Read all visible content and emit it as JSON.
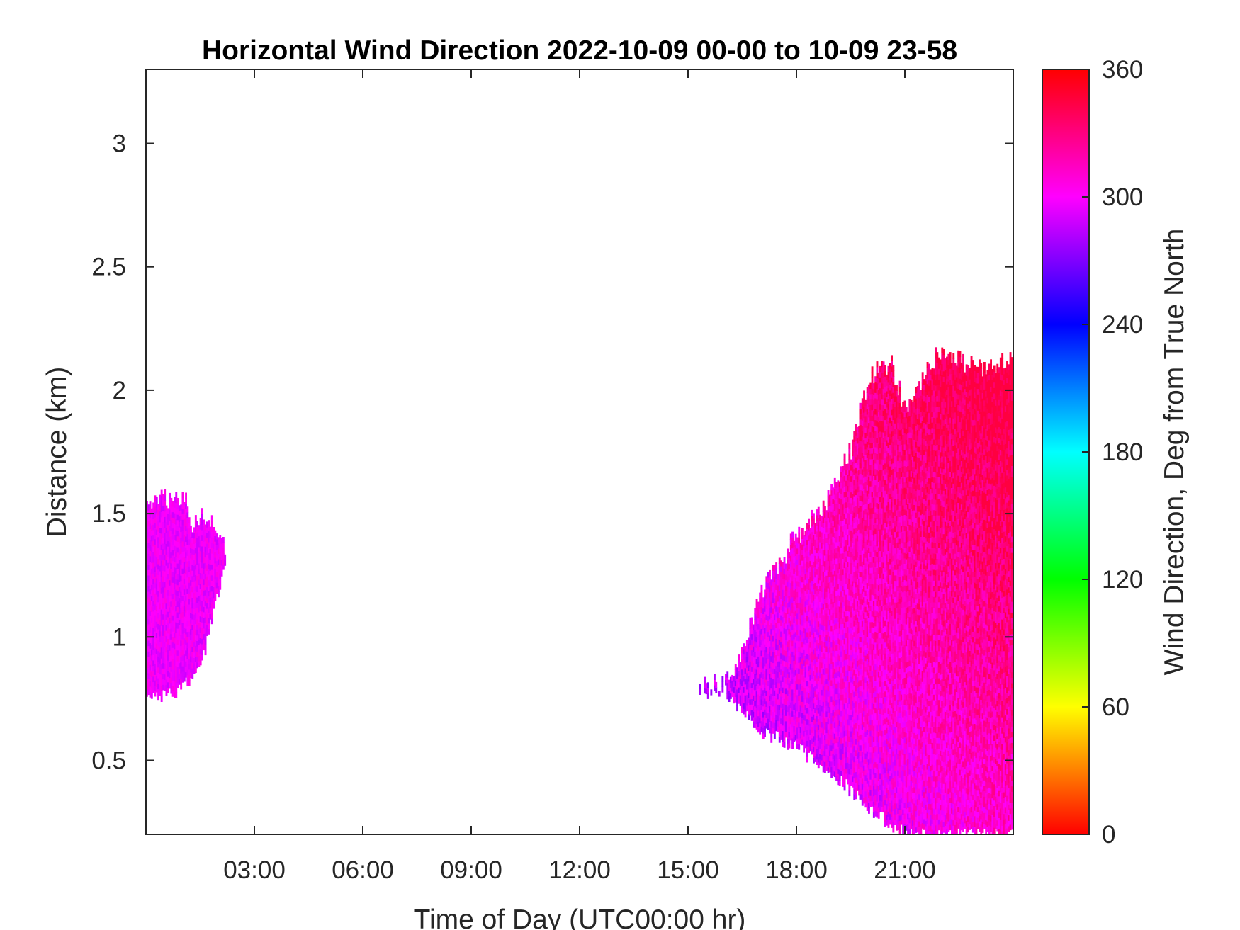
{
  "chart_data": {
    "type": "heatmap",
    "title": "Horizontal Wind Direction 2022-10-09 00-00 to 10-09 23-58",
    "xlabel": "Time of Day (UTC00:00 hr)",
    "ylabel": "Distance (km)",
    "xlim_hours": [
      0,
      24
    ],
    "ylim_km": [
      0.2,
      3.3
    ],
    "x_ticks": [
      {
        "value": 3,
        "label": "03:00"
      },
      {
        "value": 6,
        "label": "06:00"
      },
      {
        "value": 9,
        "label": "09:00"
      },
      {
        "value": 12,
        "label": "12:00"
      },
      {
        "value": 15,
        "label": "15:00"
      },
      {
        "value": 18,
        "label": "18:00"
      },
      {
        "value": 21,
        "label": "21:00"
      }
    ],
    "y_ticks": [
      {
        "value": 0.5,
        "label": "0.5"
      },
      {
        "value": 1,
        "label": "1"
      },
      {
        "value": 1.5,
        "label": "1.5"
      },
      {
        "value": 2,
        "label": "2"
      },
      {
        "value": 2.5,
        "label": "2.5"
      },
      {
        "value": 3,
        "label": "3"
      }
    ],
    "colorbar": {
      "label": "Wind Direction, Deg from True North",
      "range": [
        0,
        360
      ],
      "ticks": [
        {
          "value": 0,
          "label": "0"
        },
        {
          "value": 60,
          "label": "60"
        },
        {
          "value": 120,
          "label": "120"
        },
        {
          "value": 180,
          "label": "180"
        },
        {
          "value": 240,
          "label": "240"
        },
        {
          "value": 300,
          "label": "300"
        },
        {
          "value": 360,
          "label": "360"
        }
      ],
      "colormap": "hsv"
    },
    "regions": [
      {
        "time_range_hours": [
          0,
          2.2
        ],
        "bottom_km": [
          [
            0.0,
            0.75
          ],
          [
            0.8,
            0.78
          ],
          [
            1.5,
            0.88
          ],
          [
            2.0,
            1.2
          ],
          [
            2.2,
            1.35
          ]
        ],
        "top_km": [
          [
            0.0,
            1.55
          ],
          [
            1.1,
            1.55
          ],
          [
            1.2,
            1.43
          ],
          [
            1.5,
            1.5
          ],
          [
            1.8,
            1.45
          ],
          [
            2.0,
            1.4
          ],
          [
            2.2,
            1.35
          ]
        ],
        "direction_deg_range": [
          285,
          310
        ]
      },
      {
        "time_range_hours": [
          15.3,
          24
        ],
        "bottom_km": [
          [
            15.3,
            0.78
          ],
          [
            16.0,
            0.78
          ],
          [
            17.0,
            0.62
          ],
          [
            18.0,
            0.55
          ],
          [
            19.0,
            0.45
          ],
          [
            20.0,
            0.3
          ],
          [
            21.0,
            0.2
          ],
          [
            24.0,
            0.2
          ]
        ],
        "top_km": [
          [
            15.3,
            0.78
          ],
          [
            16.0,
            0.8
          ],
          [
            16.5,
            0.95
          ],
          [
            17.0,
            1.18
          ],
          [
            18.0,
            1.4
          ],
          [
            18.7,
            1.5
          ],
          [
            19.5,
            1.75
          ],
          [
            20.0,
            2.05
          ],
          [
            20.6,
            2.1
          ],
          [
            21.0,
            1.9
          ],
          [
            21.5,
            2.05
          ],
          [
            22.0,
            2.15
          ],
          [
            23.0,
            2.08
          ],
          [
            24.0,
            2.1
          ]
        ],
        "direction_deg_range": [
          255,
          345
        ]
      }
    ]
  }
}
